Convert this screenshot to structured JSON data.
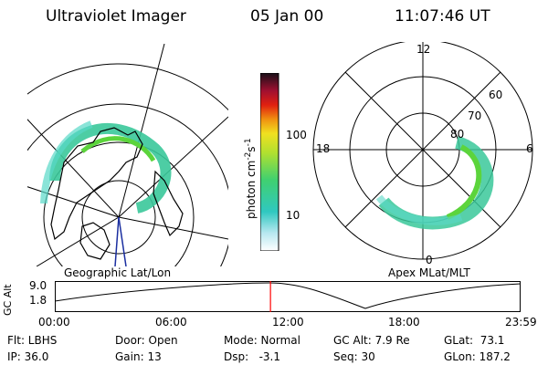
{
  "header": {
    "instrument": "Ultraviolet Imager",
    "date": "05 Jan 00",
    "time": "11:07:46 UT"
  },
  "geo_panel": {
    "caption": "Geographic Lat/Lon"
  },
  "apex_panel": {
    "caption": "Apex  MLat/MLT",
    "mlt_labels": [
      "12",
      "18",
      "6",
      "0"
    ],
    "mlat_labels": [
      "80",
      "70",
      "60"
    ]
  },
  "colorbar": {
    "unit_label": "photon cm",
    "unit_sup1": "-2",
    "unit_mid": "s",
    "unit_sup2": "-1",
    "ticks": [
      "100",
      "10"
    ]
  },
  "altitude_plot": {
    "ylabel": "GC Alt",
    "yticks": [
      "9.0",
      "1.8"
    ],
    "xticks": [
      "00:00",
      "06:00",
      "12:00",
      "18:00",
      "23:59"
    ],
    "current_time_fraction": 0.463
  },
  "footer": {
    "flt": "Flt: LBHS",
    "ip": "IP: 36.0",
    "door": "Door: Open",
    "gain": "Gain: 13",
    "mode": "Mode: Normal",
    "dsp": "Dsp:   -3.1",
    "gcalt": "GC Alt: 7.9 Re",
    "seq": "Seq: 30",
    "glat": "GLat:  73.1",
    "glon": "GLon: 187.2"
  },
  "colors": {
    "grid": "#000000",
    "land": "#000000",
    "auroral_low": "#58d8c8",
    "auroral_mid": "#3ac89a",
    "auroral_high": "#5cd43c",
    "time_marker": "#ff0000",
    "orbit_line": "#1a2ea0"
  }
}
